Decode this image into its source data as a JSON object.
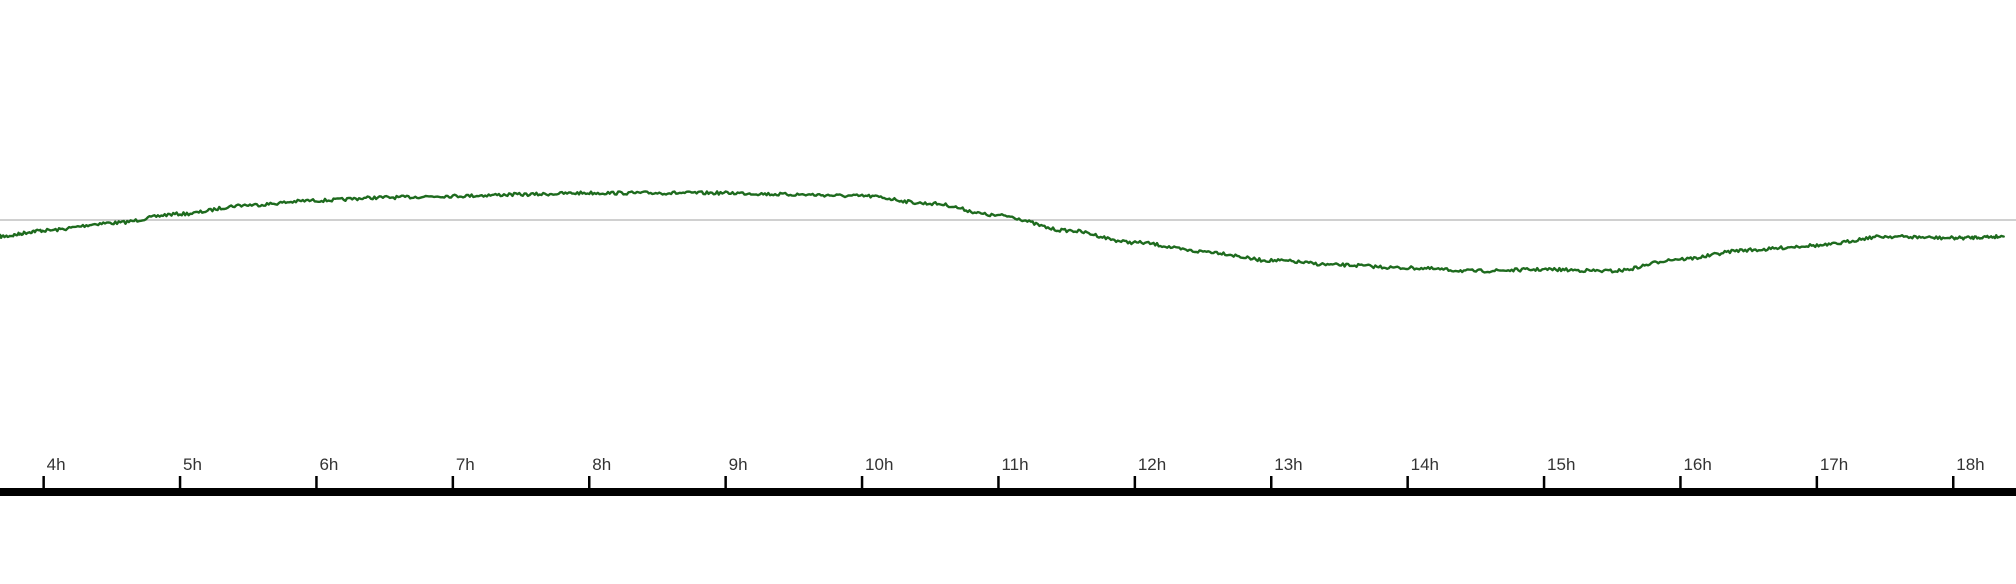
{
  "chart_data": {
    "type": "line",
    "title": "",
    "xlabel": "",
    "ylabel": "",
    "x_unit": "hours",
    "x_ticks": [
      4,
      5,
      6,
      7,
      8,
      9,
      10,
      11,
      12,
      13,
      14,
      15,
      16,
      17,
      18
    ],
    "tick_labels": [
      "4h",
      "5h",
      "6h",
      "7h",
      "8h",
      "9h",
      "10h",
      "11h",
      "12h",
      "13h",
      "14h",
      "15h",
      "16h",
      "17h",
      "18h"
    ],
    "xlim": [
      3.68,
      18.46
    ],
    "ylim": [
      -1,
      1
    ],
    "baseline": 0,
    "grid": false,
    "legend": "none",
    "colors": {
      "line": "#1e6b1e",
      "baseline": "#b4b4b4",
      "axis": "#000000",
      "tick_label": "#333333"
    },
    "series": [
      {
        "x": [
          3.68,
          4.0,
          4.5,
          5.0,
          5.5,
          6.0,
          6.5,
          7.0,
          7.5,
          8.0,
          8.5,
          9.0,
          9.5,
          10.0,
          10.5,
          11.0,
          11.5,
          12.0,
          12.5,
          13.0,
          13.5,
          14.0,
          14.5,
          15.0,
          15.5,
          16.0,
          16.5,
          17.0,
          17.5,
          18.0,
          18.37
        ],
        "values": [
          -0.11,
          -0.07,
          -0.02,
          0.04,
          0.1,
          0.13,
          0.15,
          0.16,
          0.17,
          0.18,
          0.18,
          0.18,
          0.17,
          0.16,
          0.11,
          0.03,
          -0.07,
          -0.15,
          -0.21,
          -0.27,
          -0.3,
          -0.32,
          -0.34,
          -0.33,
          -0.34,
          -0.26,
          -0.2,
          -0.17,
          -0.11,
          -0.12,
          -0.11
        ]
      }
    ]
  }
}
